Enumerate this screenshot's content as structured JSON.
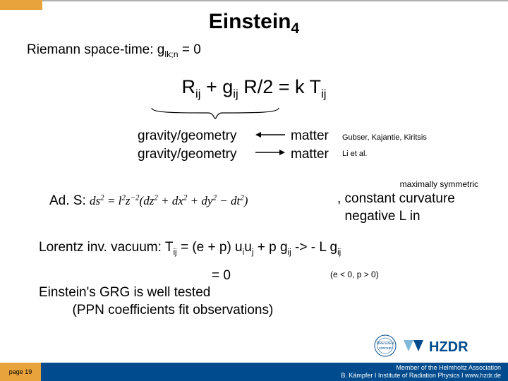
{
  "colors": {
    "orange": "#e8a33d",
    "gray": "#b0b0b0",
    "blue": "#004b8d",
    "hzdr_light": "#7fb8d8",
    "black": "#000000"
  },
  "title": {
    "main": "Einstein",
    "sub": "4",
    "fontsize": 30
  },
  "subtitle": {
    "prefix": "Riemann space-time: g",
    "sub": "lk;n",
    "suffix": " = 0",
    "fontsize": 19
  },
  "equation": {
    "parts": [
      "R",
      "ij",
      " + g",
      "ij",
      " R/2 = k T",
      "ij"
    ],
    "fontsize": 27
  },
  "gravity": {
    "line1": "gravity/geometry",
    "line2": "gravity/geometry"
  },
  "matter": {
    "line1": "matter",
    "line2": "matter"
  },
  "refs": {
    "line1": "Gubser, Kajantie, Kiritsis",
    "line2": "Li et al."
  },
  "maxsym": "maximally symmetric",
  "ads": {
    "label": "Ad. S: ",
    "formula_html": "ds<sup>2</sup> = l<sup>2</sup>z<sup>−2</sup>(dz<sup>2</sup> + dx<sup>2</sup> + dy<sup>2</sup> − dt<sup>2</sup>)"
  },
  "constcurv": {
    "line1": ", constant curvature",
    "line2": "  negative L in"
  },
  "lorentz": {
    "parts": [
      "Lorentz inv. vacuum: T",
      "ij",
      " = (e + p) u",
      "i",
      "u",
      "j",
      " + p g",
      "ij",
      " -> - L g",
      "ij"
    ]
  },
  "eq0": " = 0",
  "epnote": "(e < 0, p > 0)",
  "grg": {
    "line1": "Einstein's GRG is well tested",
    "line2": "         (PPN coefficients fit observations)"
  },
  "logo": {
    "dresden_label": "DRESDEN",
    "concept_label": "concept",
    "hzdr": "HZDR"
  },
  "footer": {
    "page": "page 19",
    "line1": "Member of the Helmholtz Association",
    "line2": "B. Kämpfer  I  Institute of Radiation Physics  I  www.hzdr.de"
  }
}
